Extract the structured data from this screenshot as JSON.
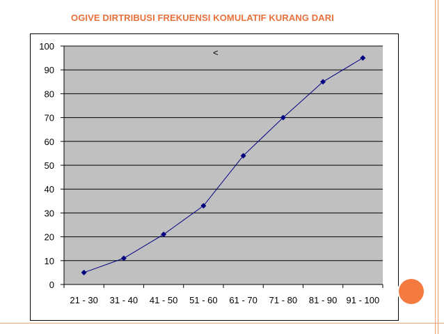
{
  "slide": {
    "title": "OGIVE DIRTRIBUSI FREKUENSI KOMULATIF KURANG DARI"
  },
  "colors": {
    "title": "#e8703a",
    "plot_background": "#c0c0c0",
    "line": "#000080",
    "gridline": "#000000",
    "accent_circle": "#f37b3f"
  },
  "chart_data": {
    "type": "line",
    "categories": [
      "21 - 30",
      "31 - 40",
      "41 - 50",
      "51 - 60",
      "61 - 70",
      "71 - 80",
      "81 - 90",
      "91 - 100"
    ],
    "series": [
      {
        "values": [
          5,
          11,
          21,
          33,
          54,
          70,
          85,
          95
        ],
        "marker": "diamond"
      }
    ],
    "ylim": [
      0,
      100
    ],
    "yticks": [
      0,
      10,
      20,
      30,
      40,
      50,
      60,
      70,
      80,
      90,
      100
    ],
    "grid": true,
    "legend": "none",
    "annotation": "<"
  }
}
